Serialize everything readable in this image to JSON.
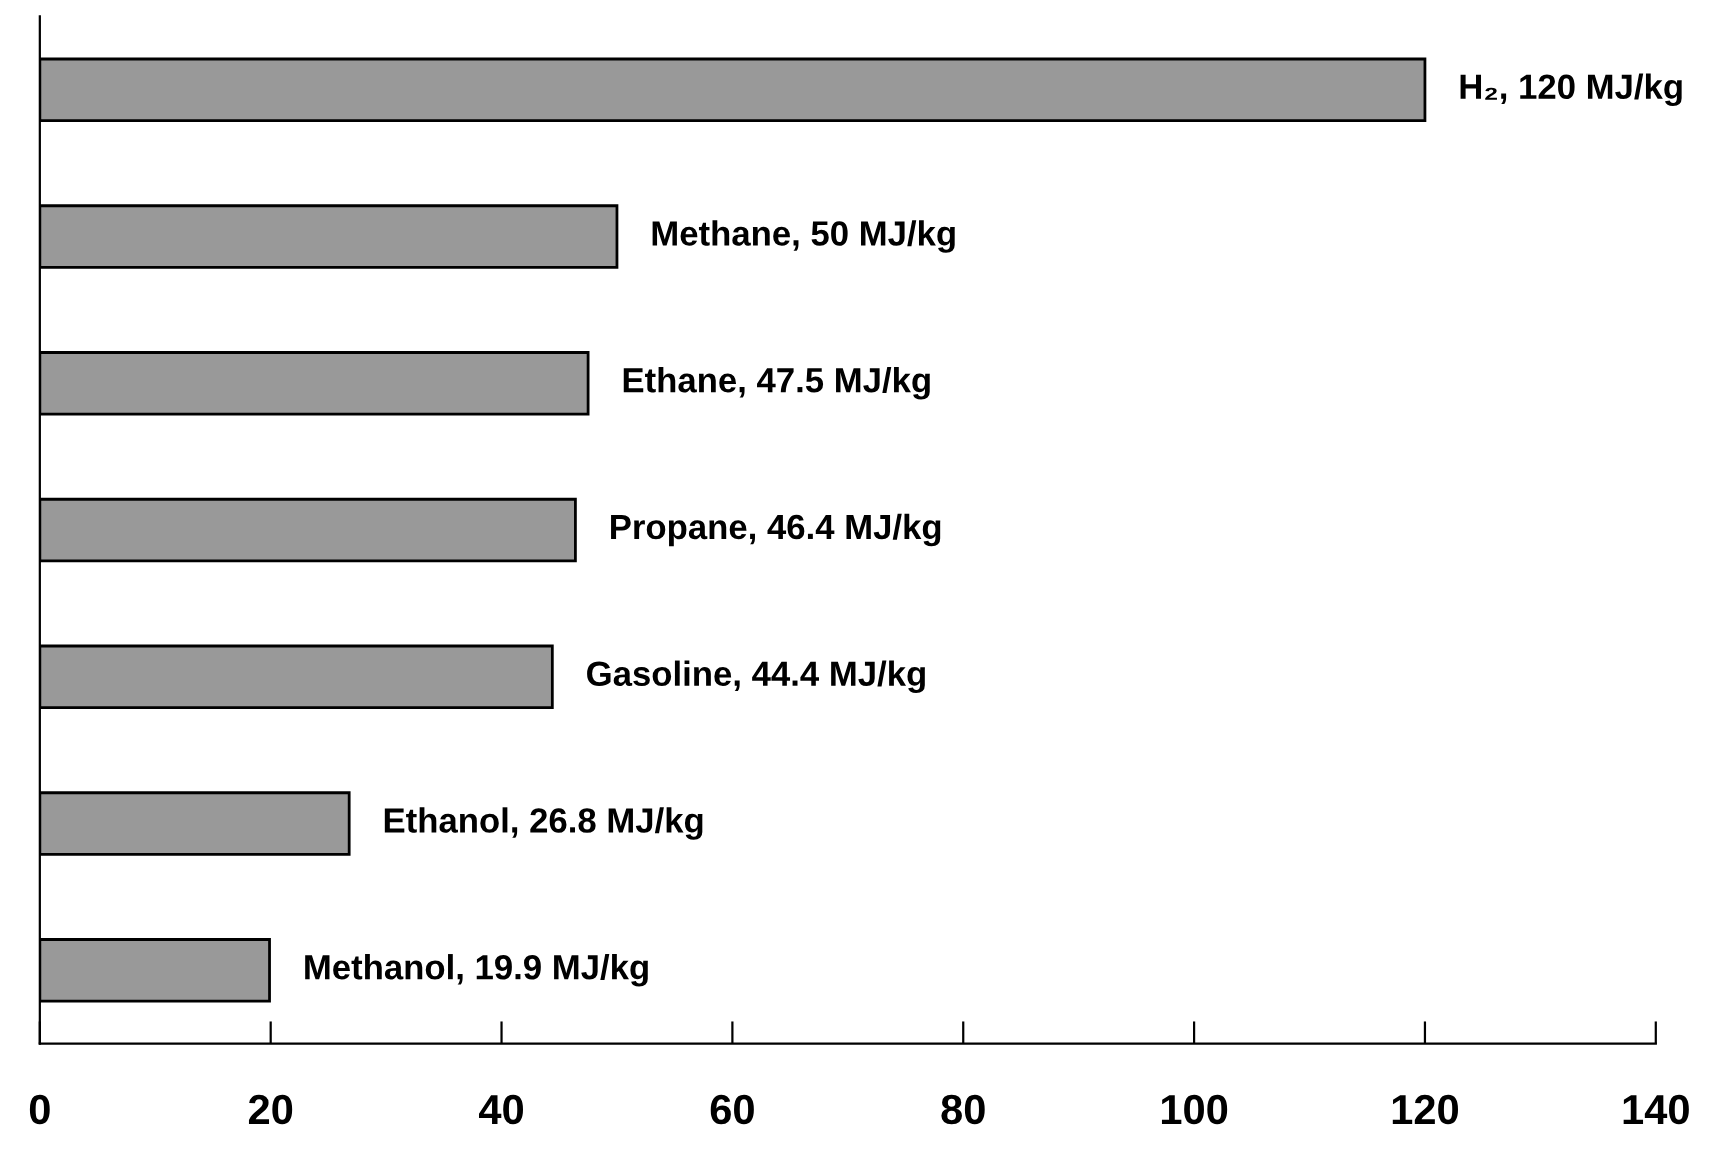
{
  "chart_data": {
    "type": "bar",
    "orientation": "horizontal",
    "categories": [
      null,
      null,
      null,
      null,
      null,
      null,
      null
    ],
    "values": [
      120,
      50,
      47.5,
      46.4,
      44.4,
      26.8,
      19.9
    ],
    "value_labels": [
      "H₂, 120 MJ/kg",
      "Methane, 50 MJ/kg",
      "Ethane, 47.5 MJ/kg",
      "Propane, 46.4 MJ/kg",
      "Gasoline, 44.4 MJ/kg",
      "Ethanol, 26.8 MJ/kg",
      "Methanol, 19.9 MJ/kg"
    ],
    "color": "#999999",
    "xlim": [
      0,
      140
    ],
    "xticks": [
      0,
      20,
      40,
      60,
      80,
      100,
      120,
      140
    ],
    "grid": false,
    "legend": false
  }
}
